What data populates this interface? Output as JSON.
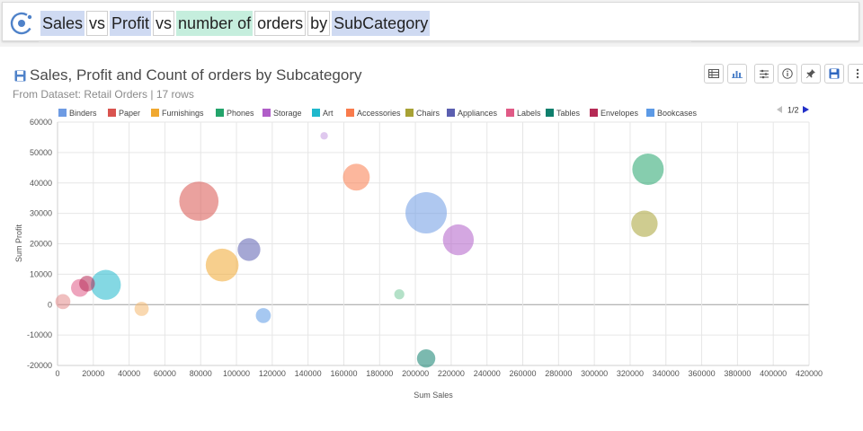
{
  "query": {
    "tokens": [
      {
        "text": "Sales",
        "style": "blue"
      },
      {
        "text": "vs",
        "style": "plain"
      },
      {
        "text": "Profit",
        "style": "blue"
      },
      {
        "text": "vs",
        "style": "plain"
      },
      {
        "text": "number of",
        "style": "green"
      },
      {
        "text": "orders",
        "style": "plain"
      },
      {
        "text": "by",
        "style": "plain"
      },
      {
        "text": "SubCategory",
        "style": "blue"
      }
    ]
  },
  "header": {
    "title": "Sales, Profit and Count of orders by Subcategory",
    "subtitle": "From Dataset: Retail Orders | 17 rows"
  },
  "legend": {
    "page": "1/2"
  },
  "chart_data": {
    "type": "scatter",
    "bubble": true,
    "xlabel": "Sum Sales",
    "ylabel": "Sum Profit",
    "xlim": [
      0,
      420000
    ],
    "ylim": [
      -20000,
      60000
    ],
    "xticks": [
      0,
      20000,
      40000,
      60000,
      80000,
      100000,
      120000,
      140000,
      160000,
      180000,
      200000,
      220000,
      240000,
      260000,
      280000,
      300000,
      320000,
      340000,
      360000,
      380000,
      400000,
      420000
    ],
    "yticks": [
      -20000,
      -10000,
      0,
      10000,
      20000,
      30000,
      40000,
      50000,
      60000
    ],
    "grid": true,
    "legend_position": "top",
    "series": [
      {
        "name": "Binders",
        "color": "#6e9be3",
        "x": 206000,
        "y": 30200,
        "size": 1520
      },
      {
        "name": "Paper",
        "color": "#d9534f",
        "x": 79000,
        "y": 34000,
        "size": 1370
      },
      {
        "name": "Furnishings",
        "color": "#f0a830",
        "x": 92000,
        "y": 13000,
        "size": 960
      },
      {
        "name": "Phones",
        "color": "#23a46b",
        "x": 330000,
        "y": 44500,
        "size": 880
      },
      {
        "name": "Storage",
        "color": "#b05ec8",
        "x": 224000,
        "y": 21300,
        "size": 850
      },
      {
        "name": "Art",
        "color": "#1fb8cc",
        "x": 27000,
        "y": 6500,
        "size": 800
      },
      {
        "name": "Accessories",
        "color": "#f97b4c",
        "x": 167000,
        "y": 41900,
        "size": 640
      },
      {
        "name": "Chairs",
        "color": "#a8a235",
        "x": 328000,
        "y": 26600,
        "size": 620
      },
      {
        "name": "Appliances",
        "color": "#5b5fb0",
        "x": 107000,
        "y": 18100,
        "size": 460
      },
      {
        "name": "Labels",
        "color": "#e05a86",
        "x": 12500,
        "y": 5500,
        "size": 280
      },
      {
        "name": "Tables",
        "color": "#0f7f6d",
        "x": 206000,
        "y": -17700,
        "size": 300
      },
      {
        "name": "Envelopes",
        "color": "#b52a55",
        "x": 16500,
        "y": 6900,
        "size": 220
      },
      {
        "name": "Bookcases",
        "color": "#5c9ae6",
        "x": 115000,
        "y": -3600,
        "size": 200
      },
      {
        "name": "",
        "color": "#f4b870",
        "x": 47000,
        "y": -1400,
        "size": 180
      },
      {
        "name": "",
        "color": "#e48a8a",
        "x": 3000,
        "y": 1000,
        "size": 200
      },
      {
        "name": "",
        "color": "#77c89a",
        "x": 191000,
        "y": 3400,
        "size": 90
      },
      {
        "name": "",
        "color": "#c49ae0",
        "x": 149000,
        "y": 55500,
        "size": 50
      }
    ]
  }
}
